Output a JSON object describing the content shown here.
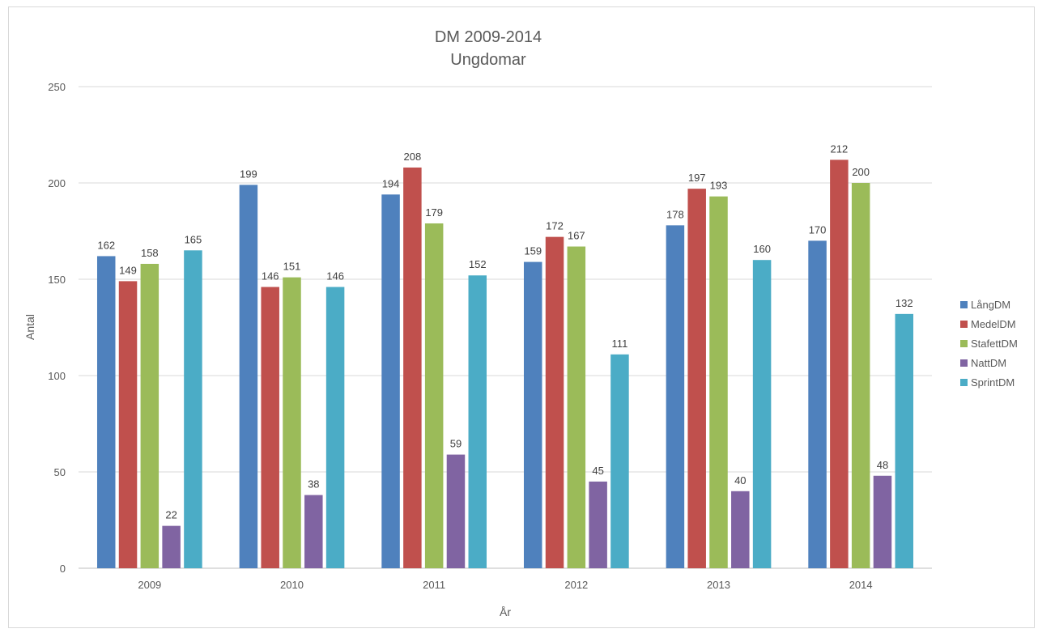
{
  "chart_data": {
    "type": "bar",
    "title": "DM 2009-2014",
    "subtitle": "Ungdomar",
    "xlabel": "År",
    "ylabel": "Antal",
    "ylim": [
      0,
      250
    ],
    "yticks": [
      0,
      50,
      100,
      150,
      200,
      250
    ],
    "grid": true,
    "legend_position": "right",
    "categories": [
      "2009",
      "2010",
      "2011",
      "2012",
      "2013",
      "2014"
    ],
    "series": [
      {
        "name": "LångDM",
        "color": "#4f81bd",
        "values": [
          162,
          199,
          194,
          159,
          178,
          170
        ]
      },
      {
        "name": "MedelDM",
        "color": "#c0504d",
        "values": [
          149,
          146,
          208,
          172,
          197,
          212
        ]
      },
      {
        "name": "StafettDM",
        "color": "#9bbb59",
        "values": [
          158,
          151,
          179,
          167,
          193,
          200
        ]
      },
      {
        "name": "NattDM",
        "color": "#8064a2",
        "values": [
          22,
          38,
          59,
          45,
          40,
          48
        ]
      },
      {
        "name": "SprintDM",
        "color": "#4bacc6",
        "values": [
          165,
          146,
          152,
          111,
          160,
          132
        ]
      }
    ]
  }
}
